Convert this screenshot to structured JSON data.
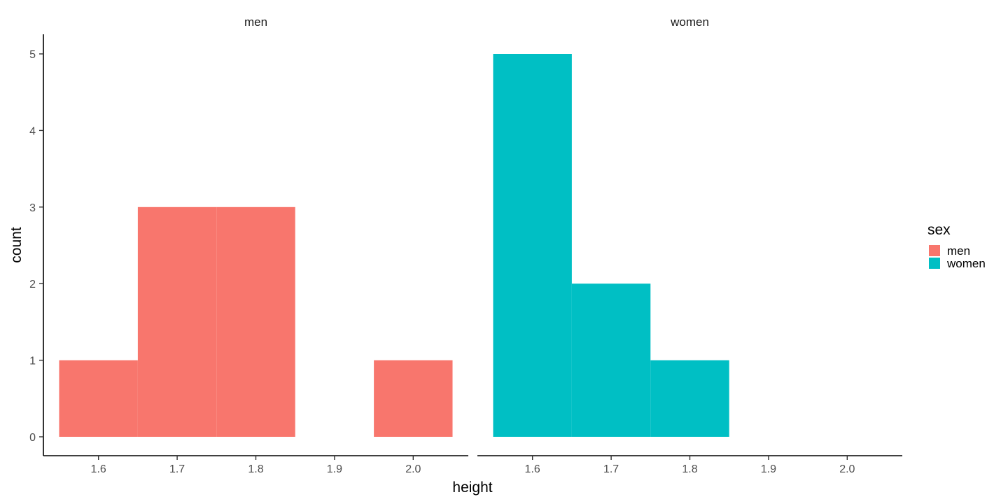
{
  "chart_data": {
    "type": "bar",
    "subtype": "histogram",
    "facet_by": "sex",
    "xlabel": "height",
    "ylabel": "count",
    "binwidth": 0.1,
    "xlim": [
      1.53,
      2.07
    ],
    "ylim": [
      0,
      5
    ],
    "x_ticks": [
      "1.6",
      "1.7",
      "1.8",
      "1.9",
      "2.0"
    ],
    "y_ticks": [
      "0",
      "1",
      "2",
      "3",
      "4",
      "5"
    ],
    "legend": {
      "title": "sex",
      "placement": "right",
      "entries": [
        {
          "label": "men",
          "color": "#F8766D"
        },
        {
          "label": "women",
          "color": "#00BFC4"
        }
      ]
    },
    "panels": [
      {
        "strip": "men",
        "color": "#F8766D",
        "bins": [
          {
            "x_start": 1.55,
            "x_end": 1.65,
            "count": 1
          },
          {
            "x_start": 1.65,
            "x_end": 1.75,
            "count": 3
          },
          {
            "x_start": 1.75,
            "x_end": 1.85,
            "count": 3
          },
          {
            "x_start": 1.85,
            "x_end": 1.95,
            "count": 0
          },
          {
            "x_start": 1.95,
            "x_end": 2.05,
            "count": 1
          }
        ]
      },
      {
        "strip": "women",
        "color": "#00BFC4",
        "bins": [
          {
            "x_start": 1.55,
            "x_end": 1.65,
            "count": 5
          },
          {
            "x_start": 1.65,
            "x_end": 1.75,
            "count": 2
          },
          {
            "x_start": 1.75,
            "x_end": 1.85,
            "count": 1
          },
          {
            "x_start": 1.85,
            "x_end": 1.95,
            "count": 0
          },
          {
            "x_start": 1.95,
            "x_end": 2.05,
            "count": 0
          }
        ]
      }
    ]
  }
}
